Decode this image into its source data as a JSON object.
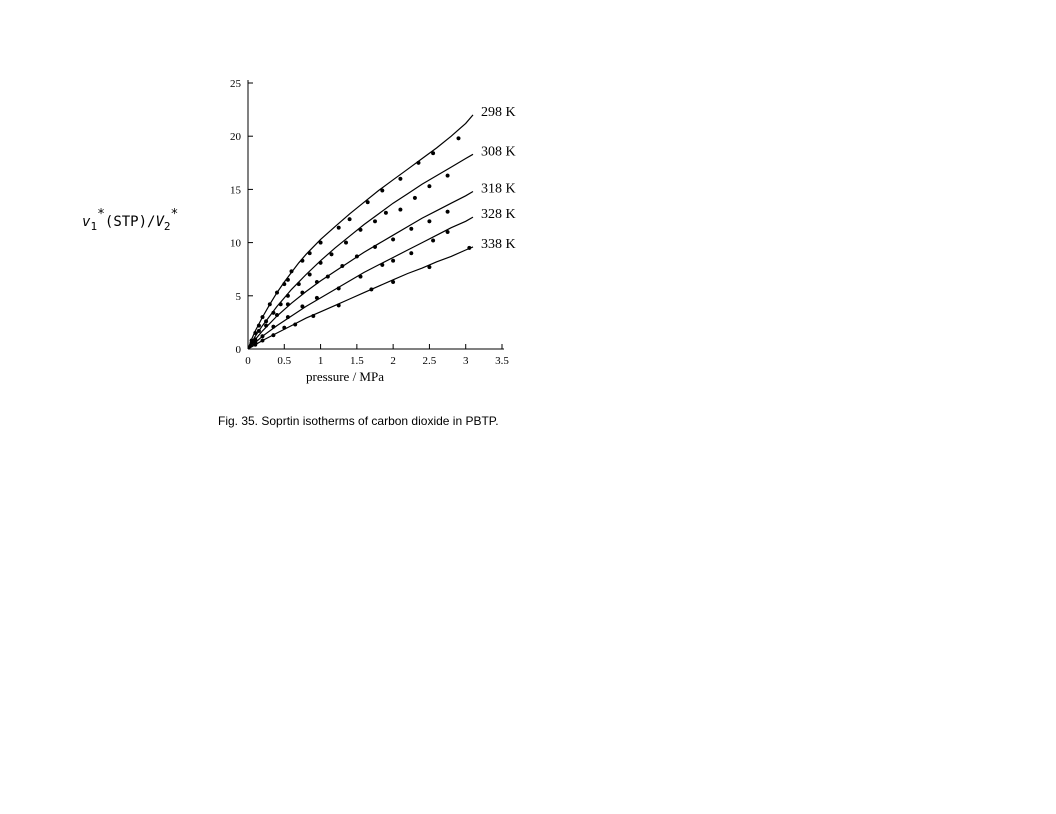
{
  "chart_data": {
    "type": "line",
    "title": "",
    "caption": "Fig. 35. Soprtin isotherms of carbon dioxide in PBTP.",
    "xlabel": "pressure / MPa",
    "ylabel": {
      "v1": "v",
      "sub1": "1",
      "star": "*",
      "mid": "(STP)/",
      "v2": "V",
      "sub2": "2"
    },
    "xlim": [
      0,
      3.5
    ],
    "ylim": [
      0,
      25
    ],
    "xticks": [
      "0",
      "0.5",
      "1",
      "1.5",
      "2",
      "2.5",
      "3",
      "3.5"
    ],
    "xtick_values": [
      0,
      0.5,
      1,
      1.5,
      2,
      2.5,
      3,
      3.5
    ],
    "yticks": [
      "0",
      "5",
      "10",
      "15",
      "20",
      "25"
    ],
    "ytick_values": [
      0,
      5,
      10,
      15,
      20,
      25
    ],
    "grid": false,
    "series": [
      {
        "name": "298 K",
        "curve": {
          "x": [
            0,
            0.05,
            0.1,
            0.2,
            0.3,
            0.4,
            0.5,
            0.6,
            0.7,
            0.8,
            1.0,
            1.2,
            1.4,
            1.6,
            1.8,
            2.0,
            2.2,
            2.4,
            2.6,
            2.8,
            3.0,
            3.1
          ],
          "y": [
            0,
            0.9,
            1.7,
            3.0,
            4.2,
            5.3,
            6.3,
            7.2,
            8.1,
            8.9,
            10.3,
            11.5,
            12.7,
            13.8,
            14.9,
            15.9,
            16.9,
            17.9,
            18.9,
            20.0,
            21.2,
            22.0
          ]
        },
        "points": {
          "x": [
            0.05,
            0.1,
            0.15,
            0.2,
            0.3,
            0.4,
            0.5,
            0.55,
            0.6,
            0.75,
            0.85,
            1.0,
            1.25,
            1.4,
            1.65,
            1.85,
            2.1,
            2.35,
            2.55,
            2.9
          ],
          "y": [
            0.8,
            1.5,
            2.2,
            3.0,
            4.2,
            5.3,
            6.1,
            6.5,
            7.3,
            8.3,
            9.0,
            10.0,
            11.4,
            12.2,
            13.8,
            14.9,
            16.0,
            17.5,
            18.4,
            19.8
          ]
        }
      },
      {
        "name": "308 K",
        "curve": {
          "x": [
            0,
            0.05,
            0.1,
            0.2,
            0.3,
            0.4,
            0.5,
            0.6,
            0.8,
            1.0,
            1.2,
            1.4,
            1.6,
            1.8,
            2.0,
            2.2,
            2.4,
            2.6,
            2.8,
            3.0,
            3.1
          ],
          "y": [
            0,
            0.6,
            1.2,
            2.2,
            3.1,
            4.0,
            4.8,
            5.6,
            7.0,
            8.3,
            9.5,
            10.6,
            11.7,
            12.7,
            13.7,
            14.6,
            15.5,
            16.3,
            17.1,
            17.9,
            18.3
          ]
        },
        "points": {
          "x": [
            0.05,
            0.15,
            0.25,
            0.35,
            0.45,
            0.55,
            0.7,
            0.85,
            1.0,
            1.15,
            1.35,
            1.55,
            1.75,
            1.9,
            2.1,
            2.3,
            2.5,
            2.75
          ],
          "y": [
            0.6,
            1.7,
            2.6,
            3.4,
            4.2,
            5.0,
            6.1,
            7.0,
            8.1,
            8.9,
            10.0,
            11.2,
            12.0,
            12.8,
            13.1,
            14.2,
            15.3,
            16.3
          ]
        }
      },
      {
        "name": "318 K",
        "curve": {
          "x": [
            0,
            0.1,
            0.2,
            0.4,
            0.6,
            0.8,
            1.0,
            1.2,
            1.4,
            1.6,
            1.8,
            2.0,
            2.2,
            2.4,
            2.6,
            2.8,
            3.0,
            3.1
          ],
          "y": [
            0,
            0.9,
            1.7,
            3.1,
            4.3,
            5.4,
            6.4,
            7.3,
            8.2,
            9.1,
            9.9,
            10.7,
            11.5,
            12.3,
            13.0,
            13.7,
            14.4,
            14.8
          ]
        },
        "points": {
          "x": [
            0.1,
            0.25,
            0.4,
            0.55,
            0.75,
            0.95,
            1.1,
            1.3,
            1.5,
            1.75,
            2.0,
            2.25,
            2.5,
            2.75
          ],
          "y": [
            0.9,
            2.2,
            3.2,
            4.2,
            5.3,
            6.3,
            6.8,
            7.8,
            8.7,
            9.6,
            10.3,
            11.3,
            12.0,
            12.9
          ]
        }
      },
      {
        "name": "328 K",
        "curve": {
          "x": [
            0,
            0.1,
            0.2,
            0.4,
            0.6,
            0.8,
            1.0,
            1.2,
            1.4,
            1.6,
            1.8,
            2.0,
            2.2,
            2.4,
            2.6,
            2.8,
            3.0,
            3.1
          ],
          "y": [
            0,
            0.6,
            1.2,
            2.2,
            3.1,
            4.0,
            4.8,
            5.6,
            6.4,
            7.2,
            7.9,
            8.6,
            9.3,
            10.0,
            10.7,
            11.4,
            12.0,
            12.4
          ]
        },
        "points": {
          "x": [
            0.1,
            0.2,
            0.35,
            0.55,
            0.75,
            0.95,
            1.25,
            1.55,
            1.85,
            2.0,
            2.25,
            2.55,
            2.75
          ],
          "y": [
            0.6,
            1.2,
            2.1,
            3.0,
            4.0,
            4.8,
            5.7,
            6.8,
            7.9,
            8.3,
            9.0,
            10.2,
            11.0
          ]
        }
      },
      {
        "name": "338 K",
        "curve": {
          "x": [
            0,
            0.1,
            0.2,
            0.4,
            0.6,
            0.8,
            1.0,
            1.2,
            1.4,
            1.6,
            1.8,
            2.0,
            2.2,
            2.4,
            2.6,
            2.8,
            3.0,
            3.1
          ],
          "y": [
            0,
            0.4,
            0.8,
            1.5,
            2.2,
            2.9,
            3.5,
            4.1,
            4.7,
            5.3,
            5.9,
            6.5,
            7.1,
            7.6,
            8.2,
            8.7,
            9.3,
            9.6
          ]
        },
        "points": {
          "x": [
            0.1,
            0.2,
            0.35,
            0.5,
            0.65,
            0.9,
            1.25,
            1.7,
            2.0,
            2.5,
            3.05
          ],
          "y": [
            0.4,
            0.8,
            1.3,
            2.0,
            2.3,
            3.1,
            4.1,
            5.6,
            6.3,
            7.7,
            9.5
          ]
        }
      }
    ]
  }
}
